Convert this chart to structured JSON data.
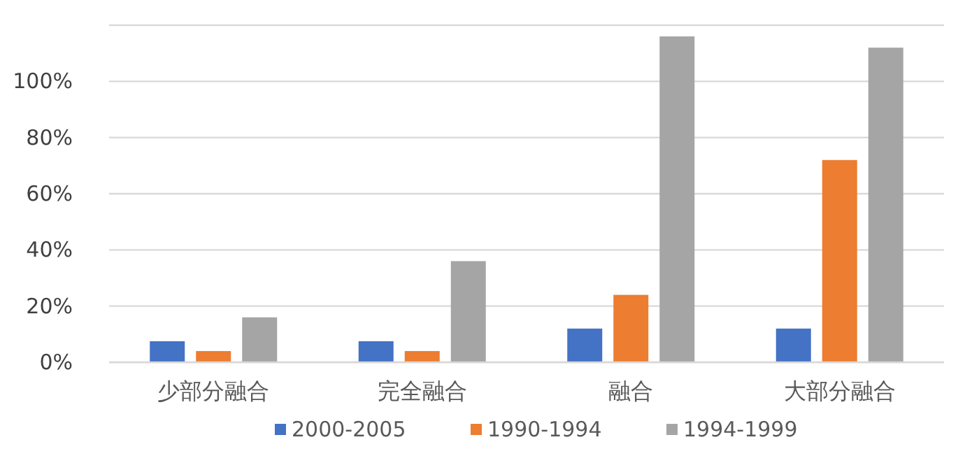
{
  "chart_data": {
    "type": "bar",
    "categories": [
      "少部分融合",
      "完全融合",
      "融合",
      "大部分融合"
    ],
    "series": [
      {
        "name": "2000-2005",
        "color": "#4472c4",
        "values": [
          7.5,
          7.5,
          12,
          12
        ]
      },
      {
        "name": "1990-1994",
        "color": "#ed7d31",
        "values": [
          4,
          4,
          24,
          72
        ]
      },
      {
        "name": "1994-1999",
        "color": "#a5a5a5",
        "values": [
          16,
          36,
          116,
          112
        ]
      }
    ],
    "ylim": [
      0,
      120
    ],
    "yticks": [
      {
        "value": 0,
        "label": "0%"
      },
      {
        "value": 20,
        "label": "20%"
      },
      {
        "value": 40,
        "label": "40%"
      },
      {
        "value": 60,
        "label": "60%"
      },
      {
        "value": 80,
        "label": "80%"
      },
      {
        "value": 100,
        "label": "100%"
      },
      {
        "value": 120,
        "label": null
      }
    ],
    "grid": "y",
    "legend": "bottom"
  }
}
